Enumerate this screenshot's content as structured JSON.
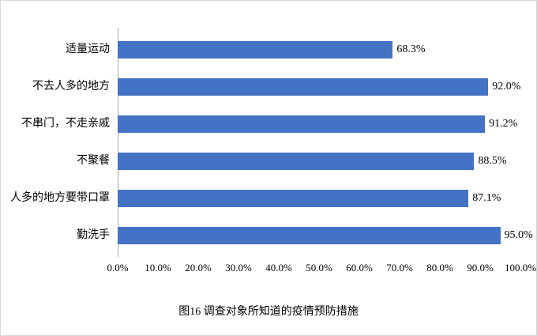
{
  "chart_data": {
    "type": "bar",
    "orientation": "horizontal",
    "categories": [
      "适量运动",
      "不去人多的地方",
      "不串门，不走亲戚",
      "不聚餐",
      "人多的地方要带口罩",
      "勤洗手"
    ],
    "values": [
      68.3,
      92.0,
      91.2,
      88.5,
      87.1,
      95.0
    ],
    "value_labels": [
      "68.3%",
      "92.0%",
      "91.2%",
      "88.5%",
      "87.1%",
      "95.0%"
    ],
    "x_ticks": [
      "0.0%",
      "10.0%",
      "20.0%",
      "30.0%",
      "40.0%",
      "50.0%",
      "60.0%",
      "70.0%",
      "80.0%",
      "90.0%",
      "100.0%"
    ],
    "xlim": [
      0,
      100
    ],
    "bar_color": "#4472C4",
    "grid": "off",
    "legend": "none",
    "title": "图16 调查对象所知道的疫情预防措施"
  }
}
